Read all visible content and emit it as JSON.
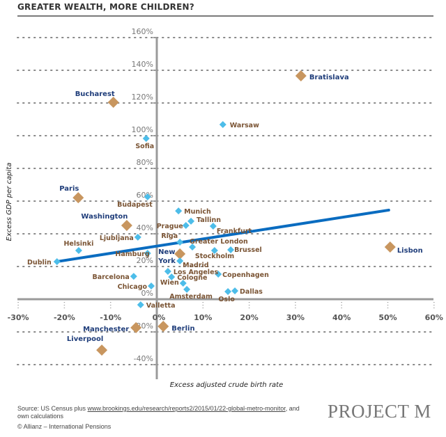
{
  "header": {
    "title": "GREATER WEALTH, MORE CHILDREN?"
  },
  "chart_data": {
    "type": "scatter",
    "title": "GREATER WEALTH, MORE CHILDREN?",
    "xlabel": "Excess adjusted crude birth rate",
    "ylabel": "Excess GDP per capita",
    "xlim": [
      -30,
      60
    ],
    "ylim": [
      -40,
      160
    ],
    "x_unit": "%",
    "y_unit": "%",
    "x_ticks": [
      "-30%",
      "-20%",
      "-10%",
      "0%",
      "10%",
      "20%",
      "30%",
      "40%",
      "50%",
      "60%"
    ],
    "y_ticks": [
      "160%",
      "140%",
      "120%",
      "100%",
      "80%",
      "60%",
      "40%",
      "20%",
      "0%",
      "-20%",
      "-40%"
    ],
    "grid": "horizontal dotted",
    "colors": {
      "highlight_marker": "#c8965f",
      "marker": "#4dbde9",
      "trend": "#0a6cc0",
      "highlight_label": "#1f3d7a",
      "label": "#7a5434"
    },
    "points": [
      {
        "city": "Bratislava",
        "x": 31.2,
        "y": 136.6,
        "highlight": true
      },
      {
        "city": "Bucharest",
        "x": -9.4,
        "y": 120.4,
        "highlight": true
      },
      {
        "city": "Warsaw",
        "x": 14.3,
        "y": 106.8,
        "highlight": false
      },
      {
        "city": "Sofia",
        "x": -2.3,
        "y": 98.3,
        "highlight": false
      },
      {
        "city": "Paris",
        "x": -17.0,
        "y": 62.1,
        "highlight": true
      },
      {
        "city": "Budapest",
        "x": -2.0,
        "y": 62.6,
        "highlight": false
      },
      {
        "city": "Munich",
        "x": 4.7,
        "y": 54.0,
        "highlight": false
      },
      {
        "city": "Washington",
        "x": -6.5,
        "y": 45.1,
        "highlight": true
      },
      {
        "city": "Tallinn",
        "x": 7.4,
        "y": 47.7,
        "highlight": false
      },
      {
        "city": "Prague",
        "x": 6.3,
        "y": 45.1,
        "highlight": false
      },
      {
        "city": "Frankfurt",
        "x": 12.2,
        "y": 44.7,
        "highlight": false
      },
      {
        "city": "Ljubljana",
        "x": -4.1,
        "y": 37.9,
        "highlight": false
      },
      {
        "city": "Riga",
        "x": 5.0,
        "y": 34.9,
        "highlight": false
      },
      {
        "city": "Greater London",
        "x": 7.7,
        "y": 31.9,
        "highlight": false
      },
      {
        "city": "Stockholm",
        "x": 12.5,
        "y": 29.8,
        "highlight": false
      },
      {
        "city": "Brussel",
        "x": 16.0,
        "y": 30.2,
        "highlight": false
      },
      {
        "city": "Helsinki",
        "x": -16.9,
        "y": 29.8,
        "highlight": false
      },
      {
        "city": "Hamburg",
        "x": -2.0,
        "y": 28.1,
        "highlight": false
      },
      {
        "city": "New York",
        "x": 5.0,
        "y": 27.7,
        "highlight": true
      },
      {
        "city": "Madrid",
        "x": 5.0,
        "y": 23.4,
        "highlight": false
      },
      {
        "city": "Dublin",
        "x": -21.6,
        "y": 23.0,
        "highlight": false
      },
      {
        "city": "Lisbon",
        "x": 50.5,
        "y": 31.9,
        "highlight": true
      },
      {
        "city": "Los Angeles",
        "x": 2.4,
        "y": 17.0,
        "highlight": false
      },
      {
        "city": "Cologne",
        "x": 3.2,
        "y": 13.6,
        "highlight": false
      },
      {
        "city": "Copenhagen",
        "x": 13.3,
        "y": 15.3,
        "highlight": false
      },
      {
        "city": "Barcelona",
        "x": -5.0,
        "y": 14.0,
        "highlight": false
      },
      {
        "city": "Chicago",
        "x": -1.2,
        "y": 8.1,
        "highlight": false
      },
      {
        "city": "Wien",
        "x": 5.7,
        "y": 9.8,
        "highlight": false
      },
      {
        "city": "Amsterdam",
        "x": 6.5,
        "y": 6.0,
        "highlight": false
      },
      {
        "city": "Oslo",
        "x": 15.4,
        "y": 4.7,
        "highlight": false
      },
      {
        "city": "Dallas",
        "x": 16.9,
        "y": 5.1,
        "highlight": false
      },
      {
        "city": "Valletta",
        "x": -3.5,
        "y": -3.4,
        "highlight": false
      },
      {
        "city": "Manchester",
        "x": -4.5,
        "y": -17.4,
        "highlight": true
      },
      {
        "city": "Berlin",
        "x": 1.4,
        "y": -16.6,
        "highlight": true
      },
      {
        "city": "Liverpool",
        "x": -11.9,
        "y": -31.1,
        "highlight": true
      }
    ],
    "trendline": {
      "x": [
        -21.6,
        50.2
      ],
      "y": [
        23.0,
        54.5
      ]
    }
  },
  "footer": {
    "source_prefix": "Source: US Census plus ",
    "source_link": "www.brookings.edu/research/reports2/2015/01/22-global-metro-monitor",
    "source_suffix": ", and own calculations",
    "copyright": "© Allianz – International Pensions",
    "logo": "PROJECT M"
  }
}
